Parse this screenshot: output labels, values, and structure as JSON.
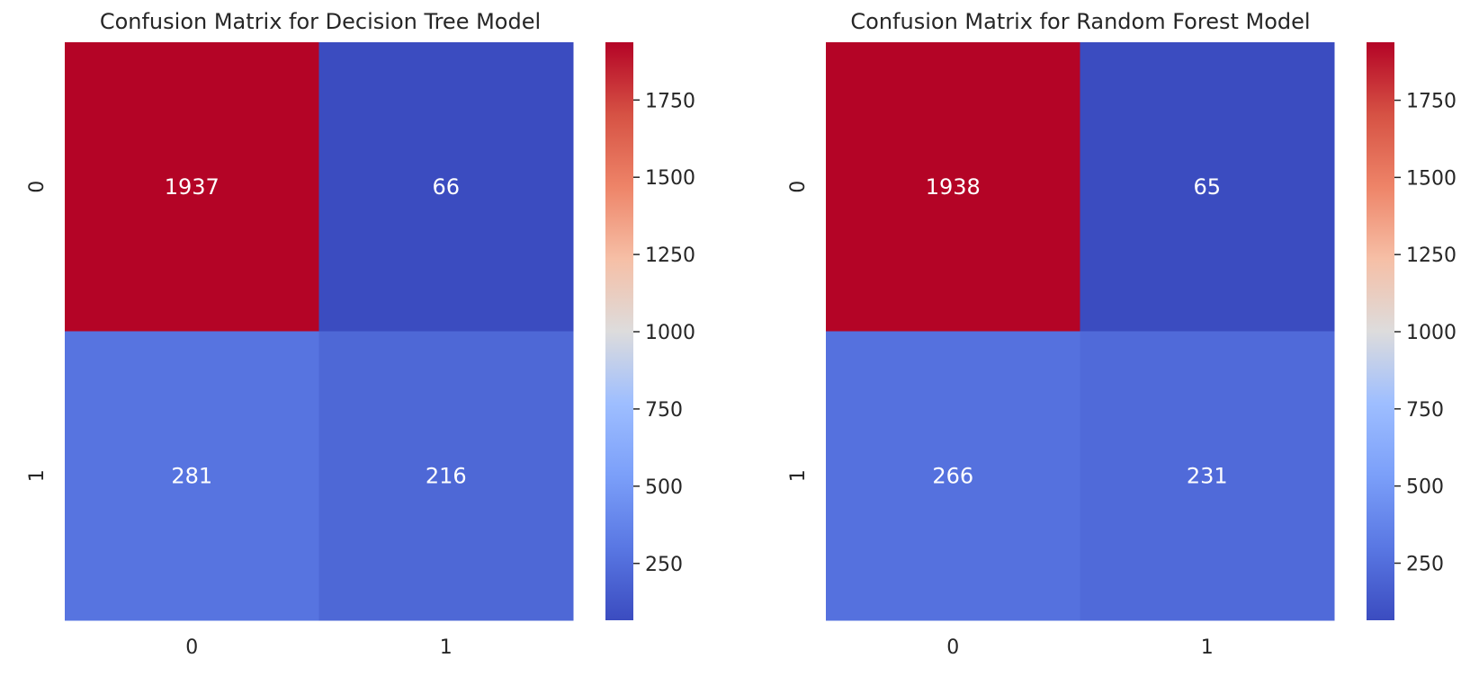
{
  "chart_data": [
    {
      "type": "heatmap",
      "title": "Confusion Matrix for Decision Tree Model",
      "xlabel": "",
      "ylabel": "",
      "x_tick_labels": [
        "0",
        "1"
      ],
      "y_tick_labels": [
        "0",
        "1"
      ],
      "values": [
        [
          1937,
          66
        ],
        [
          281,
          216
        ]
      ],
      "colormap": "coolwarm",
      "colorbar": {
        "min": 66,
        "max": 1937,
        "ticks": [
          250,
          500,
          750,
          1000,
          1250,
          1500,
          1750
        ]
      }
    },
    {
      "type": "heatmap",
      "title": "Confusion Matrix for Random Forest Model",
      "xlabel": "",
      "ylabel": "",
      "x_tick_labels": [
        "0",
        "1"
      ],
      "y_tick_labels": [
        "0",
        "1"
      ],
      "values": [
        [
          1938,
          65
        ],
        [
          266,
          231
        ]
      ],
      "colormap": "coolwarm",
      "colorbar": {
        "min": 65,
        "max": 1938,
        "ticks": [
          250,
          500,
          750,
          1000,
          1250,
          1500,
          1750
        ]
      }
    }
  ]
}
